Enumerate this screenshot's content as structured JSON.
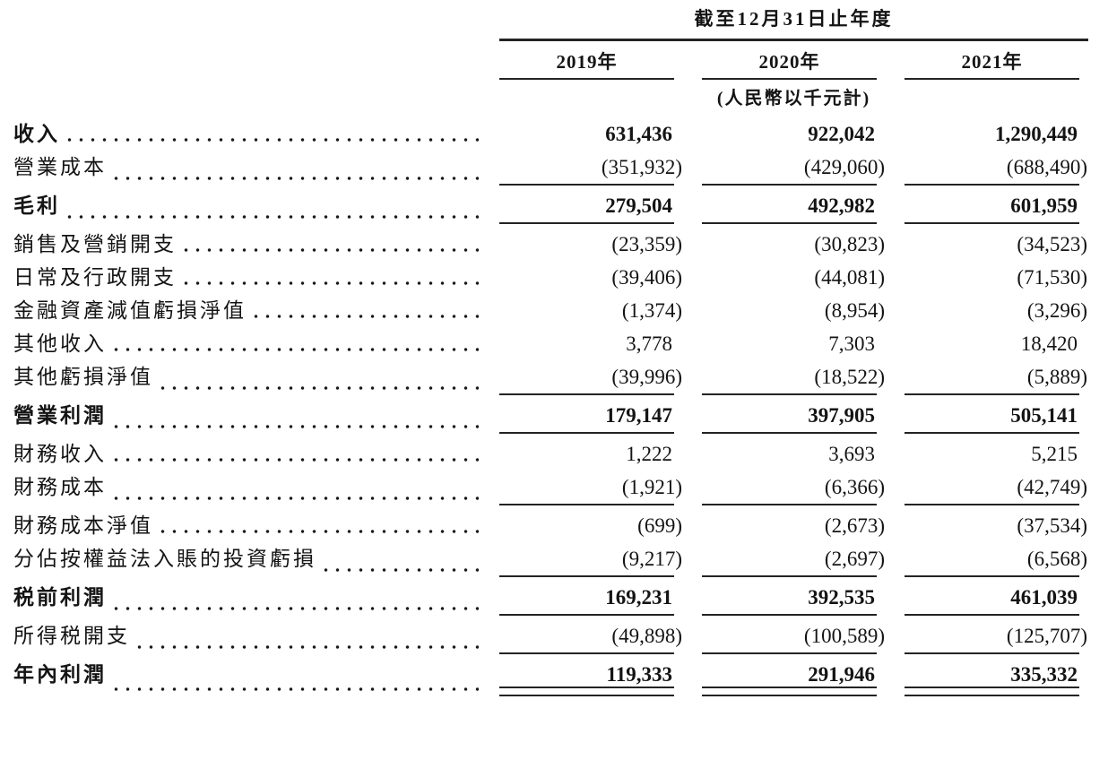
{
  "header": {
    "period_title": "截至12月31日止年度",
    "columns": [
      "2019年",
      "2020年",
      "2021年"
    ],
    "unit_note": "(人民幣以千元計)"
  },
  "table": {
    "rows": [
      {
        "label": "收入",
        "bold": true,
        "values": [
          "631,436",
          "922,042",
          "1,290,449"
        ],
        "rule_below": "none"
      },
      {
        "label": "營業成本",
        "bold": false,
        "values": [
          "(351,932)",
          "(429,060)",
          "(688,490)"
        ],
        "rule_below": "single"
      },
      {
        "label": "毛利",
        "bold": true,
        "values": [
          "279,504",
          "492,982",
          "601,959"
        ],
        "rule_below": "single"
      },
      {
        "label": "銷售及營銷開支 ",
        "bold": false,
        "values": [
          "(23,359)",
          "(30,823)",
          "(34,523)"
        ],
        "rule_below": "none"
      },
      {
        "label": "日常及行政開支 ",
        "bold": false,
        "values": [
          "(39,406)",
          "(44,081)",
          "(71,530)"
        ],
        "rule_below": "none"
      },
      {
        "label": "金融資產減值虧損淨值",
        "bold": false,
        "values": [
          "(1,374)",
          "(8,954)",
          "(3,296)"
        ],
        "rule_below": "none"
      },
      {
        "label": "其他收入",
        "bold": false,
        "values": [
          "3,778",
          "7,303",
          "18,420"
        ],
        "rule_below": "none"
      },
      {
        "label": "其他虧損淨值 ",
        "bold": false,
        "values": [
          "(39,996)",
          "(18,522)",
          "(5,889)"
        ],
        "rule_below": "single"
      },
      {
        "label": "營業利潤",
        "bold": true,
        "values": [
          "179,147",
          "397,905",
          "505,141"
        ],
        "rule_below": "single"
      },
      {
        "label": "財務收入",
        "bold": false,
        "values": [
          "1,222",
          "3,693",
          "5,215"
        ],
        "rule_below": "none"
      },
      {
        "label": "財務成本",
        "bold": false,
        "values": [
          "(1,921)",
          "(6,366)",
          "(42,749)"
        ],
        "rule_below": "single"
      },
      {
        "label": "財務成本淨值 ",
        "bold": false,
        "values": [
          "(699)",
          "(2,673)",
          "(37,534)"
        ],
        "rule_below": "none"
      },
      {
        "label": "分佔按權益法入賬的投資虧損",
        "bold": false,
        "values": [
          "(9,217)",
          "(2,697)",
          "(6,568)"
        ],
        "rule_below": "single"
      },
      {
        "label": "税前利潤",
        "bold": true,
        "values": [
          "169,231",
          "392,535",
          "461,039"
        ],
        "rule_below": "single"
      },
      {
        "label": "所得税開支",
        "bold": false,
        "values": [
          "(49,898)",
          "(100,589)",
          "(125,707)"
        ],
        "rule_below": "single"
      },
      {
        "label": "年內利潤",
        "bold": true,
        "values": [
          "119,333",
          "291,946",
          "335,332"
        ],
        "rule_below": "double"
      }
    ]
  },
  "colors": {
    "text": "#141414",
    "rule": "#232323",
    "background": "#ffffff"
  }
}
